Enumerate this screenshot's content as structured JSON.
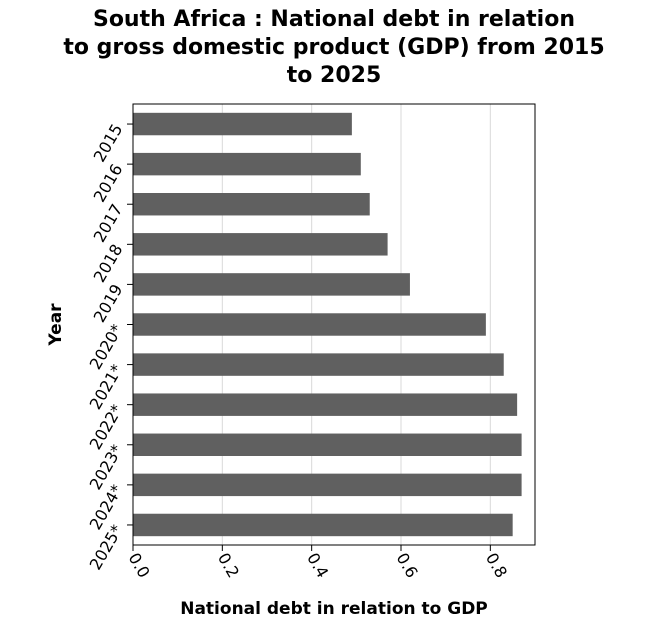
{
  "chart_data": {
    "type": "bar",
    "orientation": "horizontal",
    "title_lines": [
      "South Africa : National debt in relation",
      "to gross domestic product (GDP) from 2015",
      "to 2025"
    ],
    "xlabel": "National debt in relation to GDP",
    "ylabel": "Year",
    "categories": [
      "2015",
      "2016",
      "2017",
      "2018",
      "2019",
      "2020*",
      "2021*",
      "2022*",
      "2023*",
      "2024*",
      "2025*"
    ],
    "values": [
      0.49,
      0.51,
      0.53,
      0.57,
      0.62,
      0.79,
      0.83,
      0.86,
      0.87,
      0.87,
      0.85
    ],
    "xlim": [
      0,
      0.9
    ],
    "xticks": [
      0.0,
      0.2,
      0.4,
      0.6,
      0.8
    ],
    "xtick_labels": [
      "0.0",
      "0.2",
      "0.4",
      "0.6",
      "0.8"
    ],
    "grid": "vertical",
    "legend": "none",
    "colors": {
      "bar": "#606060",
      "grid": "#d9d9d9",
      "axis": "#000000",
      "background": "#ffffff"
    }
  }
}
